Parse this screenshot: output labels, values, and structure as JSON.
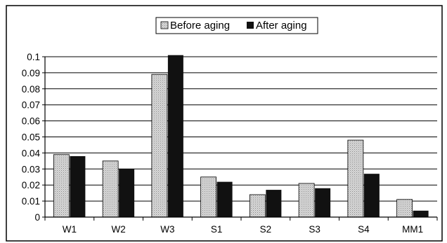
{
  "chart_data": {
    "type": "bar",
    "title": "",
    "xlabel": "",
    "ylabel": "",
    "categories": [
      "W1",
      "W2",
      "W3",
      "S1",
      "S2",
      "S3",
      "S4",
      "MM1"
    ],
    "series": [
      {
        "name": "Before aging",
        "pattern": "dotted-light",
        "values": [
          0.039,
          0.035,
          0.089,
          0.025,
          0.014,
          0.021,
          0.048,
          0.011
        ]
      },
      {
        "name": "After aging",
        "color": "#111111",
        "values": [
          0.038,
          0.03,
          0.101,
          0.022,
          0.017,
          0.018,
          0.027,
          0.004
        ]
      }
    ],
    "ylim": [
      0,
      0.1
    ],
    "yticks": [
      "0",
      "0.01",
      "0.02",
      "0.03",
      "0.04",
      "0.05",
      "0.06",
      "0.07",
      "0.08",
      "0.09",
      "0.1"
    ],
    "grid": true,
    "legend_position": "top-center"
  }
}
